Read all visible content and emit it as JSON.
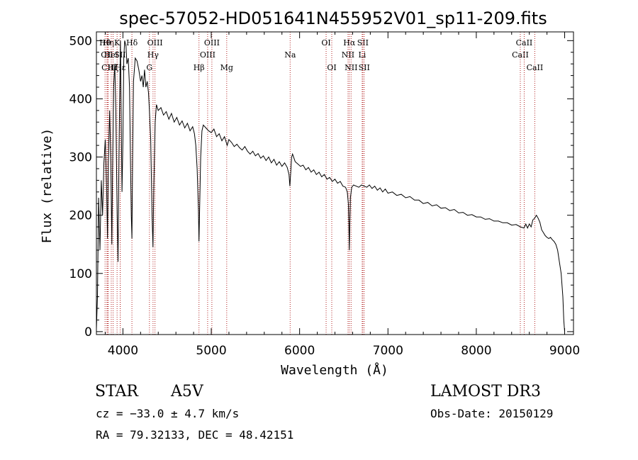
{
  "chart_data": {
    "type": "line",
    "title": "spec-57052-HD051641N455952V01_sp11-209.fits",
    "xlabel": "Wavelength (Å)",
    "ylabel": "Flux (relative)",
    "xlim": [
      3700,
      9100
    ],
    "ylim": [
      -5,
      515
    ],
    "xticks": [
      4000,
      5000,
      6000,
      7000,
      8000,
      9000
    ],
    "xtick_labels": [
      "4000",
      "5000",
      "6000",
      "7000",
      "8000",
      "9000"
    ],
    "yticks": [
      0,
      100,
      200,
      300,
      400,
      500
    ],
    "ytick_labels": [
      "0",
      "100",
      "200",
      "300",
      "400",
      "500"
    ],
    "line_color": "#000000",
    "marker_color": "#b22222",
    "series": [
      {
        "name": "flux",
        "points": [
          [
            3700,
            5
          ],
          [
            3712,
            60
          ],
          [
            3725,
            230
          ],
          [
            3740,
            140
          ],
          [
            3755,
            260
          ],
          [
            3770,
            200
          ],
          [
            3785,
            290
          ],
          [
            3800,
            330
          ],
          [
            3815,
            250
          ],
          [
            3826,
            160
          ],
          [
            3835,
            290
          ],
          [
            3850,
            380
          ],
          [
            3862,
            300
          ],
          [
            3875,
            150
          ],
          [
            3882,
            270
          ],
          [
            3895,
            420
          ],
          [
            3908,
            460
          ],
          [
            3920,
            380
          ],
          [
            3935,
            200
          ],
          [
            3945,
            120
          ],
          [
            3955,
            300
          ],
          [
            3965,
            420
          ],
          [
            3972,
            500
          ],
          [
            3980,
            380
          ],
          [
            3990,
            240
          ],
          [
            4000,
            330
          ],
          [
            4010,
            470
          ],
          [
            4020,
            500
          ],
          [
            4035,
            490
          ],
          [
            4045,
            460
          ],
          [
            4060,
            470
          ],
          [
            4075,
            420
          ],
          [
            4085,
            300
          ],
          [
            4095,
            200
          ],
          [
            4102,
            160
          ],
          [
            4110,
            300
          ],
          [
            4120,
            430
          ],
          [
            4140,
            470
          ],
          [
            4160,
            465
          ],
          [
            4180,
            450
          ],
          [
            4200,
            430
          ],
          [
            4215,
            440
          ],
          [
            4230,
            420
          ],
          [
            4245,
            450
          ],
          [
            4260,
            420
          ],
          [
            4275,
            430
          ],
          [
            4290,
            410
          ],
          [
            4300,
            380
          ],
          [
            4315,
            330
          ],
          [
            4330,
            200
          ],
          [
            4340,
            145
          ],
          [
            4350,
            250
          ],
          [
            4365,
            360
          ],
          [
            4380,
            390
          ],
          [
            4400,
            380
          ],
          [
            4430,
            385
          ],
          [
            4460,
            372
          ],
          [
            4490,
            378
          ],
          [
            4520,
            365
          ],
          [
            4550,
            375
          ],
          [
            4580,
            360
          ],
          [
            4610,
            368
          ],
          [
            4640,
            355
          ],
          [
            4670,
            362
          ],
          [
            4700,
            350
          ],
          [
            4730,
            358
          ],
          [
            4760,
            345
          ],
          [
            4790,
            352
          ],
          [
            4810,
            340
          ],
          [
            4825,
            320
          ],
          [
            4840,
            280
          ],
          [
            4855,
            210
          ],
          [
            4861,
            155
          ],
          [
            4868,
            210
          ],
          [
            4880,
            300
          ],
          [
            4895,
            345
          ],
          [
            4910,
            355
          ],
          [
            4940,
            350
          ],
          [
            4970,
            345
          ],
          [
            5000,
            342
          ],
          [
            5030,
            348
          ],
          [
            5060,
            335
          ],
          [
            5090,
            340
          ],
          [
            5120,
            328
          ],
          [
            5150,
            335
          ],
          [
            5180,
            320
          ],
          [
            5200,
            330
          ],
          [
            5230,
            325
          ],
          [
            5260,
            318
          ],
          [
            5290,
            322
          ],
          [
            5320,
            316
          ],
          [
            5350,
            312
          ],
          [
            5380,
            318
          ],
          [
            5410,
            310
          ],
          [
            5440,
            305
          ],
          [
            5470,
            310
          ],
          [
            5500,
            302
          ],
          [
            5530,
            306
          ],
          [
            5560,
            298
          ],
          [
            5590,
            302
          ],
          [
            5620,
            294
          ],
          [
            5650,
            300
          ],
          [
            5680,
            290
          ],
          [
            5710,
            296
          ],
          [
            5740,
            286
          ],
          [
            5770,
            292
          ],
          [
            5800,
            284
          ],
          [
            5830,
            290
          ],
          [
            5860,
            282
          ],
          [
            5880,
            270
          ],
          [
            5890,
            250
          ],
          [
            5900,
            275
          ],
          [
            5910,
            300
          ],
          [
            5920,
            305
          ],
          [
            5950,
            292
          ],
          [
            5980,
            288
          ],
          [
            6010,
            284
          ],
          [
            6040,
            286
          ],
          [
            6070,
            278
          ],
          [
            6100,
            282
          ],
          [
            6130,
            274
          ],
          [
            6160,
            278
          ],
          [
            6190,
            270
          ],
          [
            6220,
            274
          ],
          [
            6250,
            266
          ],
          [
            6280,
            270
          ],
          [
            6310,
            262
          ],
          [
            6340,
            265
          ],
          [
            6370,
            258
          ],
          [
            6400,
            262
          ],
          [
            6430,
            255
          ],
          [
            6460,
            258
          ],
          [
            6490,
            250
          ],
          [
            6520,
            248
          ],
          [
            6540,
            240
          ],
          [
            6552,
            220
          ],
          [
            6558,
            180
          ],
          [
            6563,
            140
          ],
          [
            6568,
            180
          ],
          [
            6575,
            230
          ],
          [
            6590,
            248
          ],
          [
            6610,
            252
          ],
          [
            6640,
            250
          ],
          [
            6670,
            248
          ],
          [
            6700,
            252
          ],
          [
            6730,
            250
          ],
          [
            6760,
            248
          ],
          [
            6790,
            252
          ],
          [
            6820,
            246
          ],
          [
            6850,
            250
          ],
          [
            6880,
            243
          ],
          [
            6910,
            247
          ],
          [
            6940,
            240
          ],
          [
            6970,
            245
          ],
          [
            7000,
            238
          ],
          [
            7050,
            240
          ],
          [
            7100,
            234
          ],
          [
            7150,
            236
          ],
          [
            7200,
            230
          ],
          [
            7250,
            232
          ],
          [
            7300,
            226
          ],
          [
            7350,
            226
          ],
          [
            7400,
            220
          ],
          [
            7450,
            222
          ],
          [
            7500,
            216
          ],
          [
            7550,
            218
          ],
          [
            7600,
            212
          ],
          [
            7650,
            213
          ],
          [
            7700,
            208
          ],
          [
            7750,
            210
          ],
          [
            7800,
            204
          ],
          [
            7850,
            205
          ],
          [
            7900,
            200
          ],
          [
            7950,
            201
          ],
          [
            8000,
            197
          ],
          [
            8050,
            197
          ],
          [
            8100,
            193
          ],
          [
            8150,
            194
          ],
          [
            8200,
            190
          ],
          [
            8250,
            190
          ],
          [
            8300,
            187
          ],
          [
            8350,
            187
          ],
          [
            8400,
            183
          ],
          [
            8450,
            184
          ],
          [
            8500,
            180
          ],
          [
            8540,
            178
          ],
          [
            8560,
            185
          ],
          [
            8580,
            178
          ],
          [
            8600,
            185
          ],
          [
            8620,
            180
          ],
          [
            8640,
            192
          ],
          [
            8660,
            195
          ],
          [
            8680,
            200
          ],
          [
            8700,
            195
          ],
          [
            8720,
            188
          ],
          [
            8740,
            175
          ],
          [
            8760,
            170
          ],
          [
            8780,
            165
          ],
          [
            8800,
            162
          ],
          [
            8820,
            160
          ],
          [
            8840,
            162
          ],
          [
            8860,
            158
          ],
          [
            8880,
            155
          ],
          [
            8900,
            150
          ],
          [
            8920,
            140
          ],
          [
            8940,
            120
          ],
          [
            8960,
            100
          ],
          [
            8980,
            60
          ],
          [
            8990,
            20
          ],
          [
            9000,
            0
          ]
        ]
      }
    ],
    "line_markers": [
      {
        "wavelength": 3798,
        "label": "Hθ",
        "row": 0
      },
      {
        "wavelength": 3819,
        "label": "CII",
        "row": 1
      },
      {
        "wavelength": 3826,
        "label": "CII",
        "row": 2
      },
      {
        "wavelength": 3835,
        "label": "Hη",
        "row": 0
      },
      {
        "wavelength": 3868,
        "label": "HeI",
        "row": 1
      },
      {
        "wavelength": 3889,
        "label": "Hζ",
        "row": 2
      },
      {
        "wavelength": 3934,
        "label": "K",
        "row": 0
      },
      {
        "wavelength": 3970,
        "label": "Hε",
        "row": 2
      },
      {
        "wavelength": 3969,
        "label": "SII",
        "row": 1
      },
      {
        "wavelength": 4102,
        "label": "Hδ",
        "row": 0
      },
      {
        "wavelength": 4300,
        "label": "G",
        "row": 2
      },
      {
        "wavelength": 4341,
        "label": "Hγ",
        "row": 1
      },
      {
        "wavelength": 4363,
        "label": "OIII",
        "row": 0
      },
      {
        "wavelength": 4861,
        "label": "Hβ",
        "row": 2
      },
      {
        "wavelength": 4959,
        "label": "OIII",
        "row": 1
      },
      {
        "wavelength": 5007,
        "label": "OIII",
        "row": 0
      },
      {
        "wavelength": 5175,
        "label": "Mg",
        "row": 2
      },
      {
        "wavelength": 5893,
        "label": "Na",
        "row": 1
      },
      {
        "wavelength": 6300,
        "label": "OI",
        "row": 0
      },
      {
        "wavelength": 6364,
        "label": "OI",
        "row": 2
      },
      {
        "wavelength": 6548,
        "label": "NII",
        "row": 1
      },
      {
        "wavelength": 6563,
        "label": "Hα",
        "row": 0
      },
      {
        "wavelength": 6583,
        "label": "NII",
        "row": 2
      },
      {
        "wavelength": 6708,
        "label": "Li",
        "row": 1
      },
      {
        "wavelength": 6716,
        "label": "SII",
        "row": 0
      },
      {
        "wavelength": 6731,
        "label": "SII",
        "row": 2
      },
      {
        "wavelength": 8498,
        "label": "CaII",
        "row": 1
      },
      {
        "wavelength": 8542,
        "label": "CaII",
        "row": 0
      },
      {
        "wavelength": 8662,
        "label": "CaII",
        "row": 2
      }
    ]
  },
  "info": {
    "object_class": "STAR",
    "subclass": "A5V",
    "survey": "LAMOST DR3",
    "cz": "cz = −33.0 ± 4.7 km/s",
    "obs_date": "Obs-Date: 20150129",
    "coords": "RA =  79.32133, DEC =  48.42151"
  }
}
